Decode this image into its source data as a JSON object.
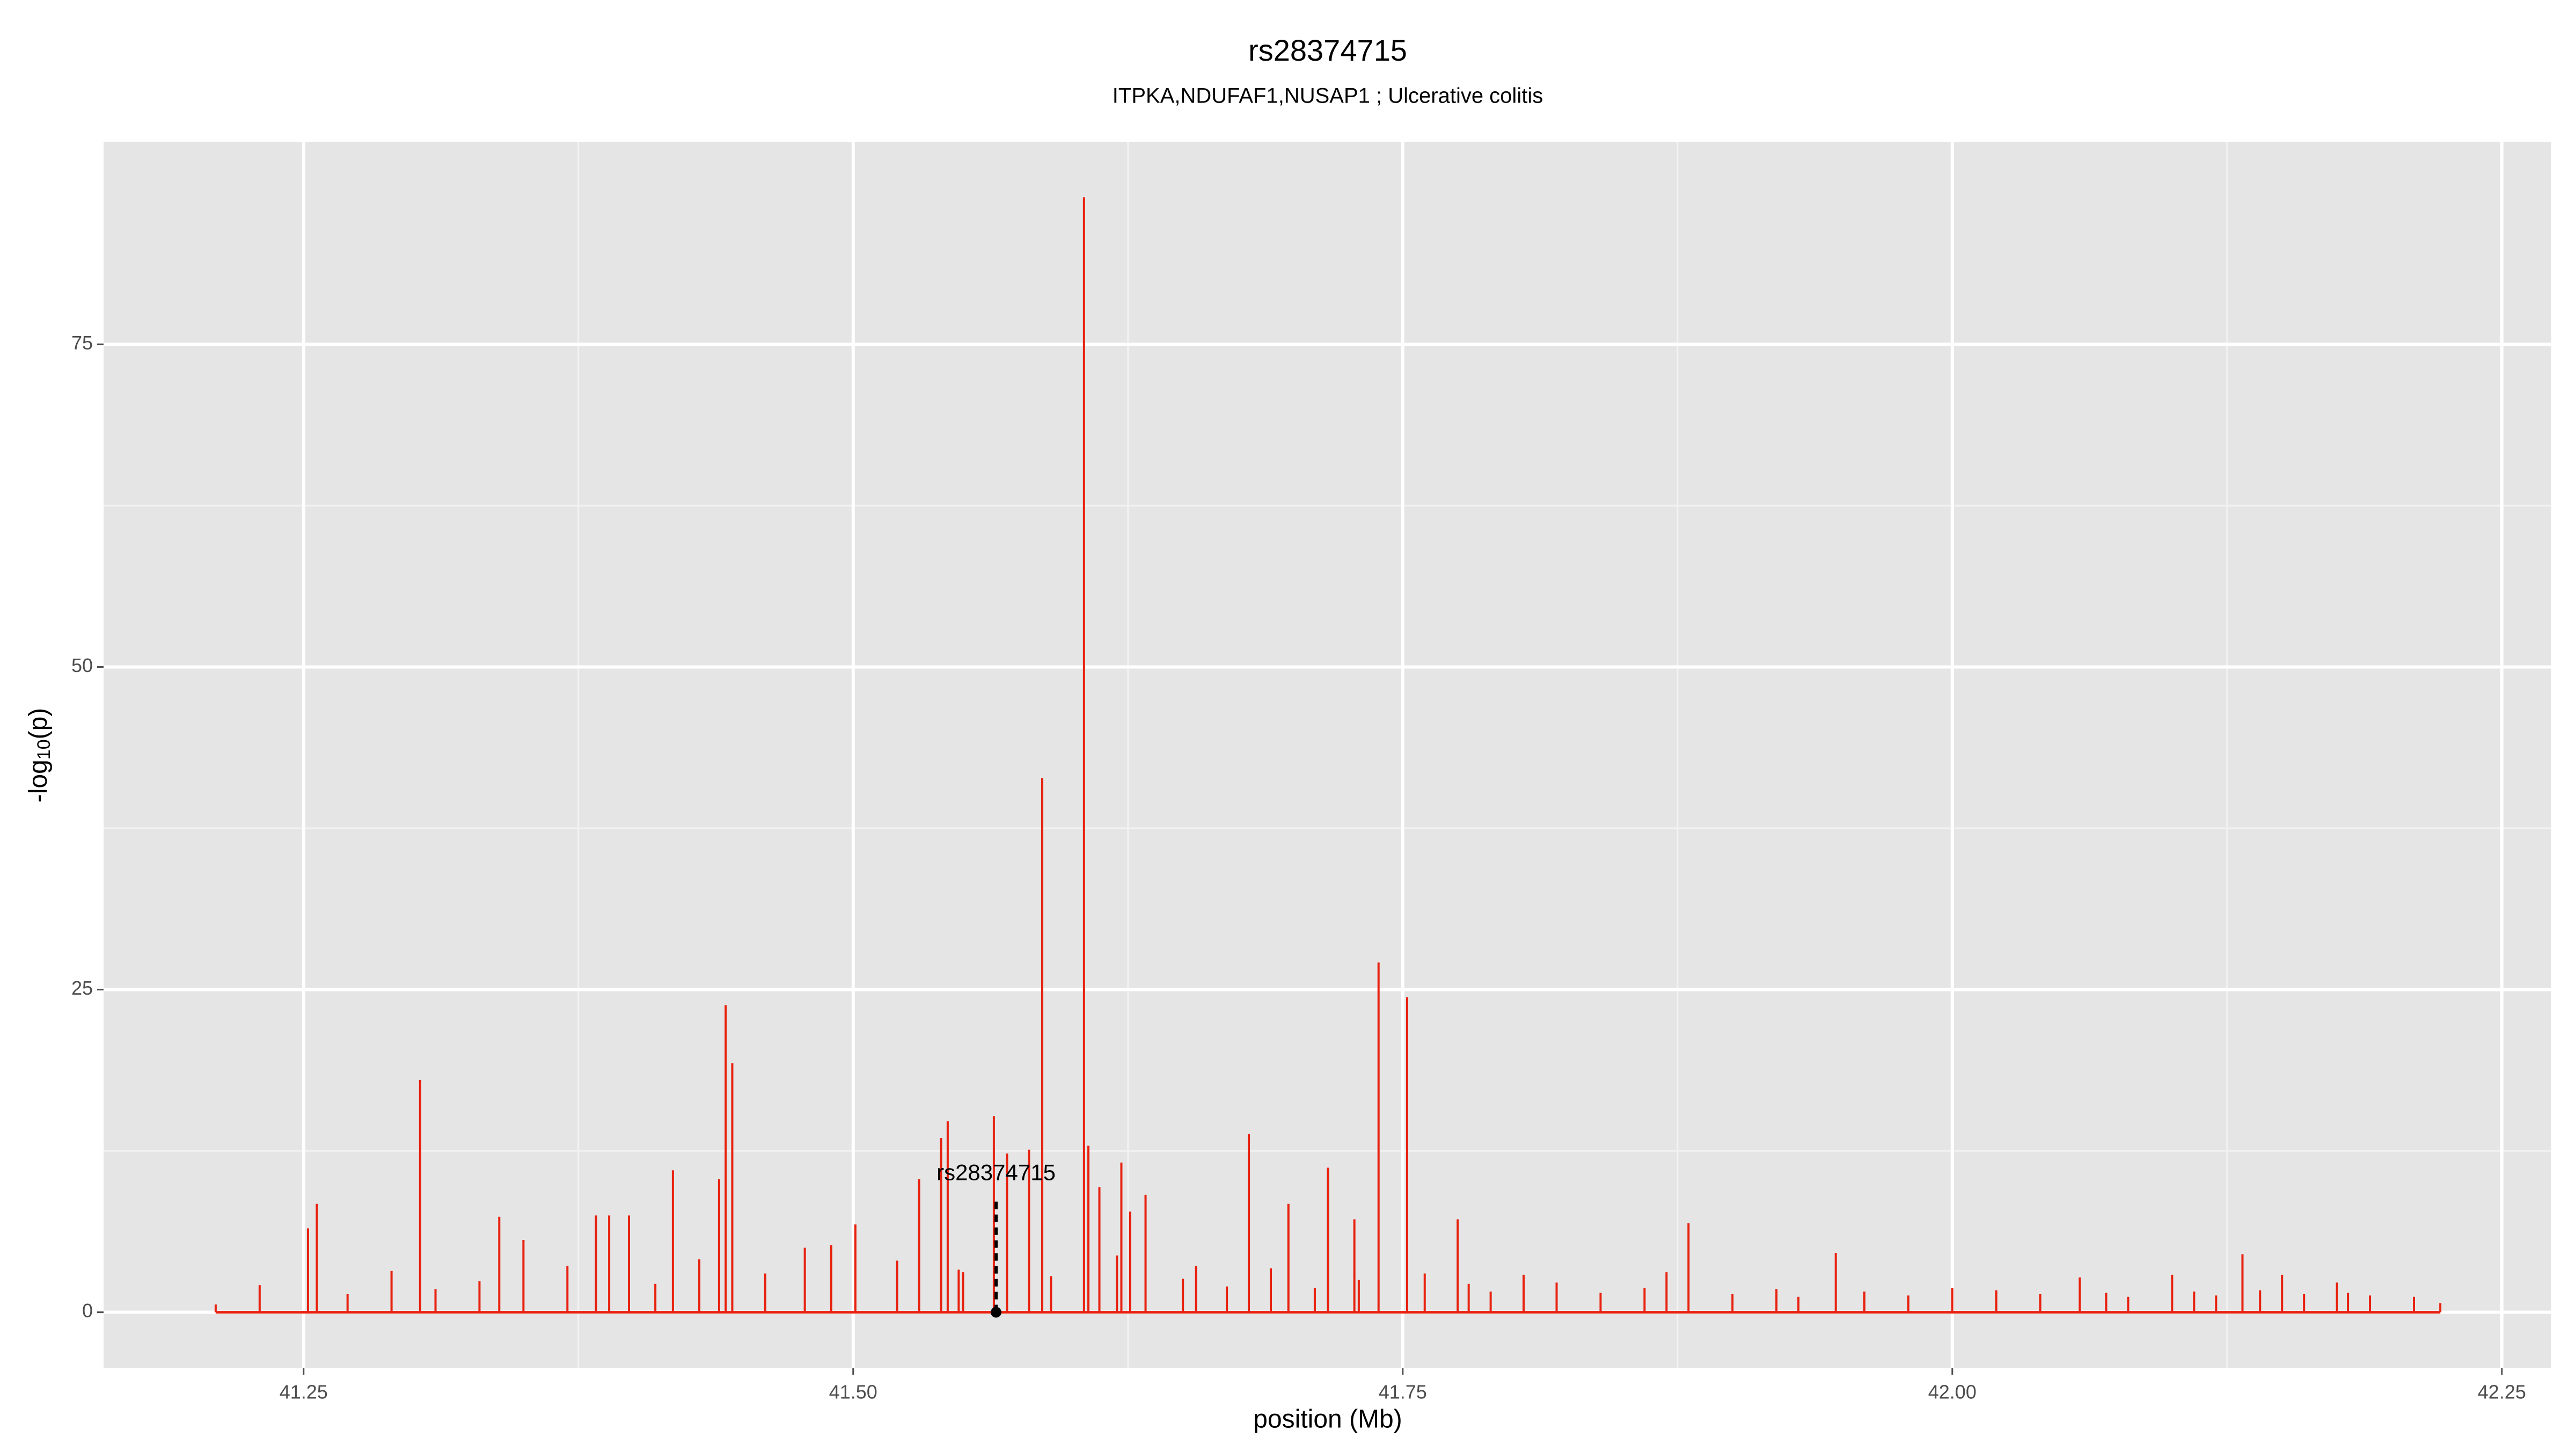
{
  "chart_data": {
    "type": "spike",
    "title": "rs28374715",
    "subtitle": "ITPKA,NDUFAF1,NUSAP1 ; Ulcerative colitis",
    "x_label": "position (Mb)",
    "y_label": {
      "prefix": "-log",
      "sub": "10",
      "suffix": "(p)"
    },
    "color": "#e8210f",
    "grid": true,
    "minor_grid": true,
    "xlim": [
      41.159,
      42.2725
    ],
    "ylim": [
      -4.34,
      90.7
    ],
    "xticks": [
      41.25,
      {
        "value": 41.5,
        "label": "41.50"
      },
      41.75,
      {
        "value": 42.0,
        "label": "42.00"
      },
      42.25
    ],
    "yticks": [
      0,
      25,
      50,
      75
    ],
    "x": [
      41.252,
      41.256,
      41.303,
      41.339,
      41.35,
      41.383,
      41.389,
      41.398,
      41.418,
      41.439,
      41.442,
      41.445,
      41.478,
      41.501,
      41.53,
      41.54,
      41.543,
      41.548,
      41.564,
      41.57,
      41.58,
      41.586,
      41.605,
      41.607,
      41.612,
      41.622,
      41.626,
      41.633,
      41.656,
      41.68,
      41.698,
      41.716,
      41.728,
      41.739,
      41.752,
      41.775,
      41.805,
      41.88,
      41.947,
      42.058,
      42.1,
      42.132,
      42.15,
      42.175,
      41.21,
      41.23,
      41.27,
      41.29,
      41.31,
      41.33,
      41.37,
      41.41,
      41.43,
      41.46,
      41.49,
      41.52,
      41.55,
      41.59,
      41.62,
      41.65,
      41.67,
      41.69,
      41.71,
      41.73,
      41.76,
      41.78,
      41.79,
      41.82,
      41.84,
      41.86,
      41.87,
      41.9,
      41.92,
      41.93,
      41.96,
      41.98,
      42.0,
      42.02,
      42.04,
      42.07,
      42.08,
      42.11,
      42.12,
      42.14,
      42.16,
      42.18,
      42.19,
      42.21,
      42.222
    ],
    "values": [
      6.5,
      8.4,
      18.0,
      7.4,
      5.6,
      7.5,
      7.5,
      7.5,
      11.0,
      10.3,
      23.8,
      19.3,
      5.0,
      6.8,
      10.3,
      13.5,
      14.8,
      3.3,
      15.2,
      12.3,
      12.6,
      41.4,
      86.4,
      12.9,
      9.7,
      11.6,
      7.8,
      9.1,
      3.6,
      13.8,
      8.4,
      11.2,
      7.2,
      27.1,
      24.4,
      7.2,
      2.9,
      6.9,
      4.6,
      2.7,
      2.9,
      4.5,
      2.9,
      2.3,
      0.6,
      2.1,
      1.4,
      3.2,
      1.8,
      2.4,
      3.6,
      2.2,
      4.1,
      3.0,
      5.2,
      4.0,
      3.1,
      2.8,
      4.4,
      2.6,
      2.0,
      3.4,
      1.9,
      2.5,
      3.0,
      2.2,
      1.6,
      2.3,
      1.5,
      1.9,
      3.1,
      1.4,
      1.8,
      1.2,
      1.6,
      1.3,
      1.9,
      1.7,
      1.4,
      1.5,
      1.2,
      1.6,
      1.3,
      1.7,
      1.4,
      1.5,
      1.3,
      1.2,
      0.7
    ],
    "annotation": {
      "label": "rs28374715",
      "x": 41.565,
      "line_top": 8.7
    }
  }
}
